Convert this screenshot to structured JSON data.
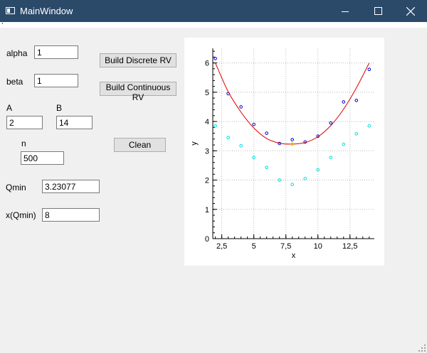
{
  "window": {
    "title": "MainWindow",
    "minimize": "—",
    "maximize": "☐",
    "close": "✕"
  },
  "params": {
    "alpha_label": "alpha",
    "alpha_value": "1",
    "beta_label": "beta",
    "beta_value": "1",
    "A_label": "A",
    "A_value": "2",
    "B_label": "B",
    "B_value": "14",
    "n_label": "n",
    "n_value": "500",
    "qmin_label": "Qmin",
    "qmin_value": "3.23077",
    "xqmin_label": "x(Qmin)",
    "xqmin_value": "8"
  },
  "buttons": {
    "discrete": "Build Discrete RV",
    "continuous": "Build Continuous RV",
    "clean": "Clean"
  },
  "chart_data": {
    "type": "scatter",
    "xlabel": "x",
    "ylabel": "y",
    "xlim": [
      1.8,
      14.4
    ],
    "ylim": [
      0,
      6.5
    ],
    "x_ticks": [
      2.5,
      5,
      7.5,
      10,
      12.5
    ],
    "x_tick_labels": [
      "2,5",
      "5",
      "7,5",
      "10",
      "12,5"
    ],
    "y_ticks": [
      0,
      1,
      2,
      3,
      4,
      5,
      6
    ],
    "y_tick_labels": [
      "0",
      "1",
      "2",
      "3",
      "4",
      "5",
      "6"
    ],
    "grid": true,
    "series": [
      {
        "kind": "points",
        "color": "#0000cc",
        "x": [
          2,
          3,
          4,
          5,
          6,
          7,
          8,
          9,
          10,
          11,
          12,
          13,
          14
        ],
        "y": [
          6.15,
          4.95,
          4.5,
          3.9,
          3.6,
          3.25,
          3.38,
          3.3,
          3.5,
          3.95,
          4.67,
          4.72,
          5.78
        ]
      },
      {
        "kind": "points",
        "color": "#00dddd",
        "x": [
          2,
          3,
          4,
          5,
          6,
          7,
          8,
          9,
          10,
          11,
          12,
          13,
          14
        ],
        "y": [
          3.85,
          3.45,
          3.17,
          2.77,
          2.43,
          2.0,
          1.85,
          2.05,
          2.35,
          2.77,
          3.22,
          3.58,
          3.85
        ]
      },
      {
        "kind": "line",
        "color": "#dd0000",
        "x": [
          2,
          3,
          4,
          5,
          6,
          7,
          8,
          9,
          10,
          11,
          12,
          13,
          14
        ],
        "y": [
          6.0,
          5.02,
          4.32,
          3.78,
          3.42,
          3.26,
          3.23,
          3.28,
          3.48,
          3.86,
          4.42,
          5.15,
          6.0
        ]
      },
      {
        "kind": "marker",
        "color": "#d0c000",
        "x": [
          8
        ],
        "y": [
          3.23077
        ]
      }
    ]
  }
}
